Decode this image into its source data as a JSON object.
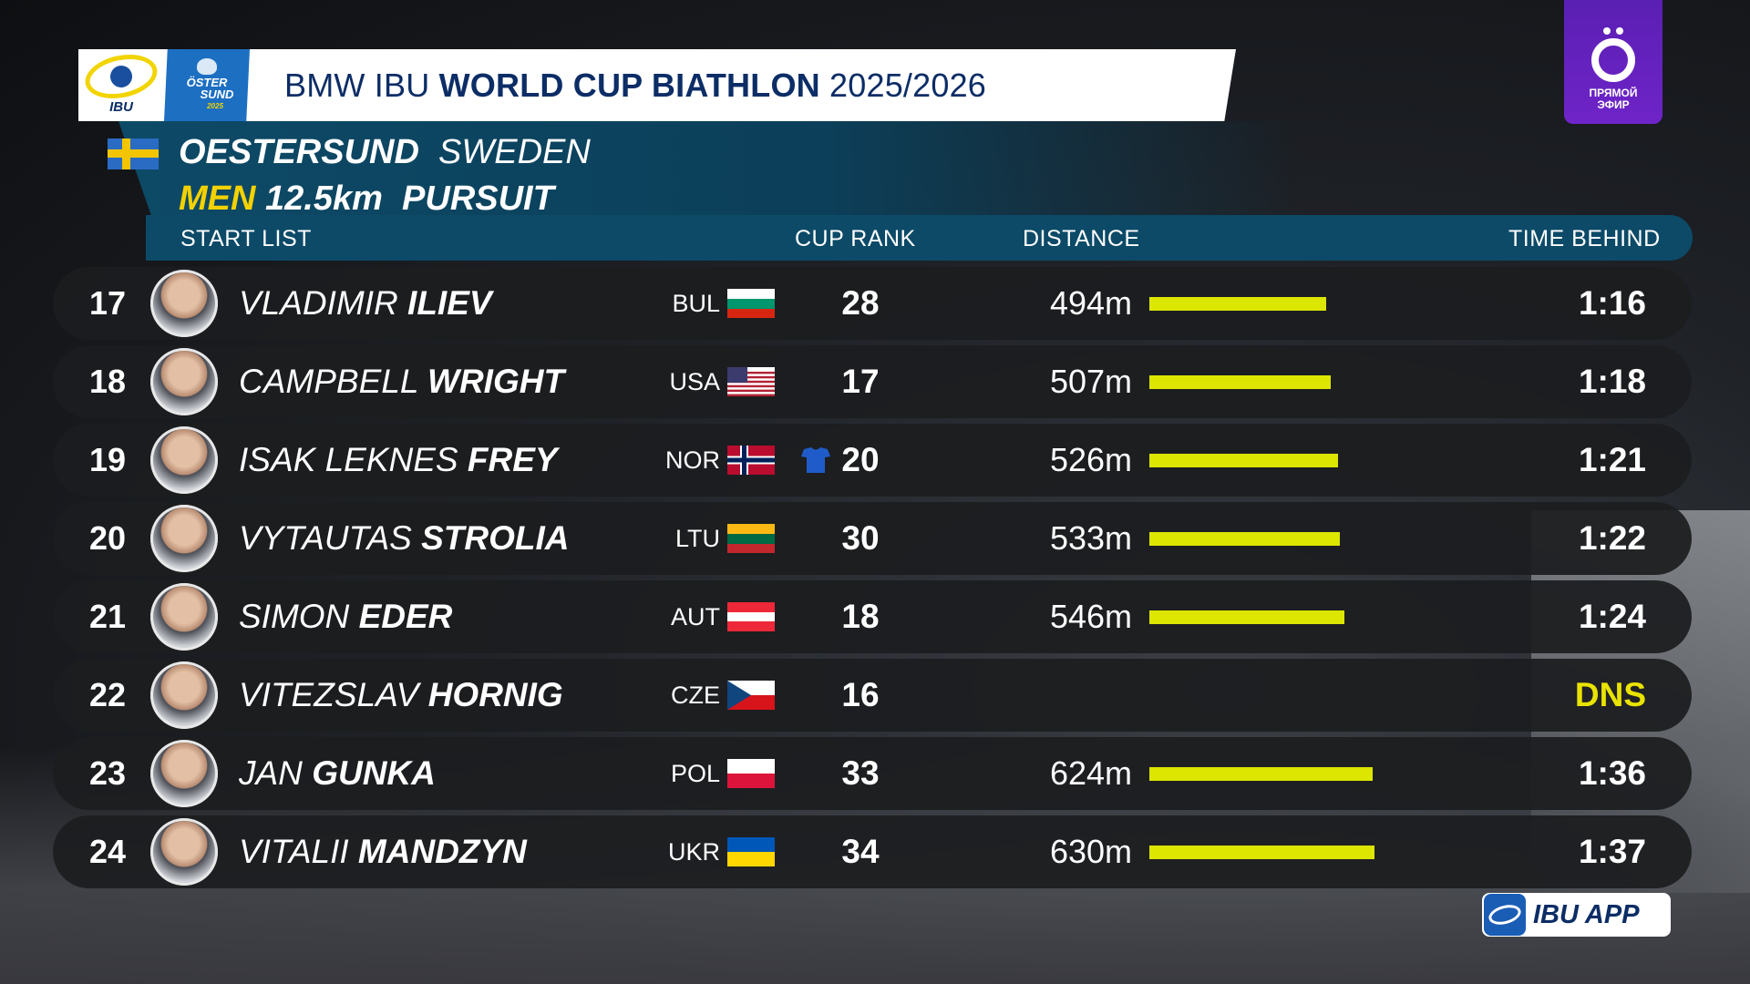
{
  "header": {
    "title_prefix": "BMW IBU",
    "title_bold": "WORLD CUP BIATHLON",
    "title_suffix": "2025/2026",
    "ibu_logo_label": "IBU",
    "host_logo_line1": "ÖSTER",
    "host_logo_line2": "SUND",
    "host_logo_year": "2025"
  },
  "event": {
    "venue": "OESTERSUND",
    "country": "SWEDEN",
    "gender": "MEN",
    "distance": "12.5km",
    "format": "PURSUIT"
  },
  "columns": {
    "start_list": "START  LIST",
    "cup_rank": "CUP  RANK",
    "distance": "DISTANCE",
    "time_behind": "TIME  BEHIND"
  },
  "rows": [
    {
      "bib": "17",
      "first": "VLADIMIR",
      "last": "ILIEV",
      "nat": "BUL",
      "rank": "28",
      "distance": "494m",
      "distance_m": 494,
      "behind": "1:16",
      "flag": "bul"
    },
    {
      "bib": "18",
      "first": "CAMPBELL",
      "last": "WRIGHT",
      "nat": "USA",
      "rank": "17",
      "distance": "507m",
      "distance_m": 507,
      "behind": "1:18",
      "flag": "usa"
    },
    {
      "bib": "19",
      "first": "ISAK  LEKNES",
      "last": "FREY",
      "nat": "NOR",
      "rank": "20",
      "distance": "526m",
      "distance_m": 526,
      "behind": "1:21",
      "flag": "nor",
      "leader_bib_icon": "blue-bib-icon"
    },
    {
      "bib": "20",
      "first": "VYTAUTAS",
      "last": "STROLIA",
      "nat": "LTU",
      "rank": "30",
      "distance": "533m",
      "distance_m": 533,
      "behind": "1:22",
      "flag": "ltu"
    },
    {
      "bib": "21",
      "first": "SIMON",
      "last": "EDER",
      "nat": "AUT",
      "rank": "18",
      "distance": "546m",
      "distance_m": 546,
      "behind": "1:24",
      "flag": "aut"
    },
    {
      "bib": "22",
      "first": "VITEZSLAV",
      "last": "HORNIG",
      "nat": "CZE",
      "rank": "16",
      "distance": "",
      "distance_m": 0,
      "behind": "DNS",
      "flag": "cze"
    },
    {
      "bib": "23",
      "first": "JAN",
      "last": "GUNKA",
      "nat": "POL",
      "rank": "33",
      "distance": "624m",
      "distance_m": 624,
      "behind": "1:36",
      "flag": "pol"
    },
    {
      "bib": "24",
      "first": "VITALII",
      "last": "MANDZYN",
      "nat": "UKR",
      "rank": "34",
      "distance": "630m",
      "distance_m": 630,
      "behind": "1:37",
      "flag": "ukr"
    }
  ],
  "live_badge": {
    "line1": "ПРЯМОЙ",
    "line2": "ЭФИР"
  },
  "app_badge": {
    "label": "IBU APP"
  },
  "colors": {
    "bar": "#dce600",
    "dns": "#e9e300",
    "accent_yellow": "#f3d100",
    "panel_blue": "#0c4a68"
  }
}
